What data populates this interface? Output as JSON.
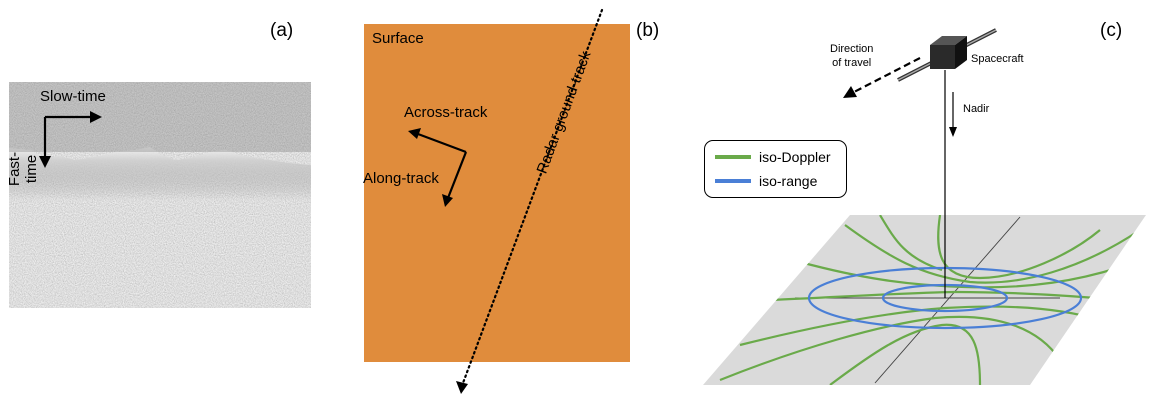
{
  "panel_a": {
    "label": "(a)",
    "slow_time": "Slow-time",
    "fast_time": "Fast-time"
  },
  "panel_b": {
    "label": "(b)",
    "surface": "Surface",
    "across_track": "Across-track",
    "along_track": "Along-track",
    "ground_track": "Radar ground-track",
    "surface_color": "#E08C3C"
  },
  "panel_c": {
    "label": "(c)",
    "direction_of_travel_line1": "Direction",
    "direction_of_travel_line2": "of travel",
    "spacecraft": "Spacecraft",
    "nadir": "Nadir",
    "legend": [
      {
        "label": "iso-Doppler",
        "color": "#6AAA4A"
      },
      {
        "label": "iso-range",
        "color": "#4A7FD6"
      }
    ],
    "plane_color": "#DADADA"
  }
}
